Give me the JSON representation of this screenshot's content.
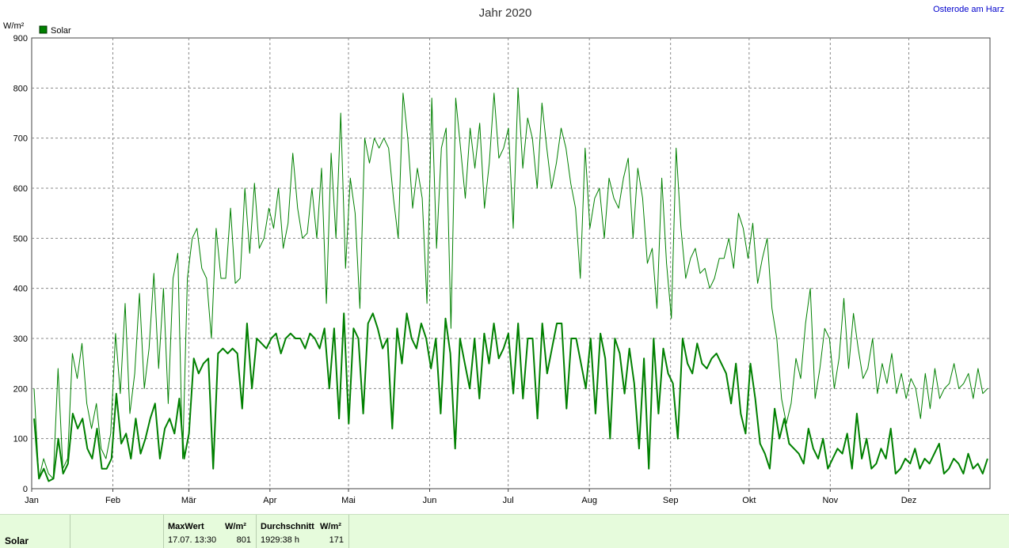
{
  "station": "Osterode am Harz",
  "chart_data": {
    "type": "line",
    "title": "Jahr 2020",
    "y_unit": "W/m²",
    "ylim": [
      0,
      900
    ],
    "y_ticks": [
      0,
      100,
      200,
      300,
      400,
      500,
      600,
      700,
      800,
      900
    ],
    "grid": true,
    "legend": {
      "position": "top-left",
      "entries": [
        "Solar"
      ]
    },
    "months": [
      "Jan",
      "Feb",
      "Mär",
      "Apr",
      "Mai",
      "Jun",
      "Jul",
      "Aug",
      "Sep",
      "Okt",
      "Nov",
      "Dez"
    ],
    "series": [
      {
        "name": "Solar",
        "role": "daily maximum",
        "color": "#008000",
        "values": [
          200,
          20,
          60,
          30,
          20,
          240,
          40,
          60,
          270,
          220,
          290,
          170,
          120,
          170,
          80,
          60,
          110,
          310,
          190,
          370,
          150,
          230,
          390,
          200,
          280,
          430,
          240,
          400,
          170,
          420,
          470,
          60,
          420,
          500,
          520,
          440,
          420,
          300,
          520,
          420,
          420,
          560,
          410,
          420,
          600,
          470,
          610,
          480,
          500,
          560,
          520,
          600,
          480,
          530,
          670,
          560,
          500,
          510,
          600,
          500,
          640,
          370,
          670,
          500,
          750,
          440,
          620,
          550,
          360,
          700,
          650,
          700,
          680,
          700,
          680,
          580,
          500,
          790,
          700,
          560,
          640,
          580,
          370,
          780,
          480,
          680,
          720,
          320,
          780,
          680,
          580,
          720,
          640,
          730,
          560,
          650,
          790,
          660,
          680,
          720,
          520,
          800,
          640,
          740,
          700,
          600,
          770,
          680,
          600,
          650,
          720,
          680,
          610,
          560,
          420,
          680,
          520,
          580,
          600,
          500,
          620,
          580,
          560,
          620,
          660,
          500,
          640,
          580,
          450,
          480,
          360,
          620,
          450,
          340,
          680,
          520,
          420,
          460,
          480,
          430,
          440,
          400,
          420,
          460,
          460,
          500,
          440,
          550,
          520,
          460,
          530,
          410,
          460,
          500,
          360,
          300,
          180,
          130,
          170,
          260,
          220,
          330,
          400,
          180,
          240,
          320,
          300,
          200,
          260,
          380,
          240,
          350,
          280,
          220,
          240,
          300,
          190,
          250,
          210,
          270,
          190,
          230,
          180,
          220,
          200,
          140,
          230,
          160,
          240,
          180,
          200,
          210,
          250,
          200,
          210,
          230,
          180,
          240,
          190,
          200
        ]
      },
      {
        "name": "Solar",
        "role": "daily average",
        "color": "#008000",
        "values": [
          140,
          20,
          40,
          15,
          20,
          100,
          30,
          50,
          150,
          120,
          140,
          80,
          60,
          120,
          40,
          40,
          60,
          190,
          90,
          110,
          60,
          140,
          70,
          100,
          140,
          170,
          60,
          120,
          140,
          110,
          180,
          60,
          110,
          260,
          230,
          250,
          260,
          40,
          270,
          280,
          270,
          280,
          270,
          160,
          330,
          200,
          300,
          290,
          280,
          300,
          310,
          270,
          300,
          310,
          300,
          300,
          280,
          310,
          300,
          280,
          320,
          200,
          320,
          140,
          350,
          130,
          320,
          300,
          150,
          330,
          350,
          320,
          280,
          300,
          120,
          320,
          250,
          350,
          300,
          280,
          330,
          300,
          240,
          300,
          150,
          340,
          270,
          80,
          300,
          250,
          200,
          300,
          180,
          310,
          250,
          330,
          260,
          280,
          310,
          190,
          330,
          180,
          300,
          300,
          140,
          330,
          230,
          280,
          330,
          330,
          160,
          300,
          300,
          250,
          200,
          300,
          150,
          310,
          260,
          100,
          300,
          270,
          190,
          280,
          210,
          80,
          260,
          40,
          300,
          150,
          280,
          230,
          210,
          100,
          300,
          250,
          230,
          290,
          250,
          240,
          260,
          270,
          250,
          230,
          170,
          250,
          150,
          110,
          250,
          180,
          90,
          70,
          40,
          160,
          100,
          140,
          90,
          80,
          70,
          50,
          120,
          80,
          60,
          100,
          40,
          60,
          80,
          70,
          110,
          40,
          150,
          60,
          100,
          40,
          50,
          80,
          60,
          120,
          30,
          40,
          60,
          50,
          80,
          40,
          60,
          50,
          70,
          90,
          30,
          40,
          60,
          50,
          30,
          70,
          40,
          50,
          30,
          60
        ]
      }
    ]
  },
  "footer": {
    "series_name": "Solar",
    "max_header": "MaxWert",
    "max_unit": "W/m²",
    "max_time": "17.07.  13:30",
    "max_value": "801",
    "avg_header": "Durchschnitt",
    "avg_unit": "W/m²",
    "avg_hours": "1929:38 h",
    "avg_value": "171"
  }
}
